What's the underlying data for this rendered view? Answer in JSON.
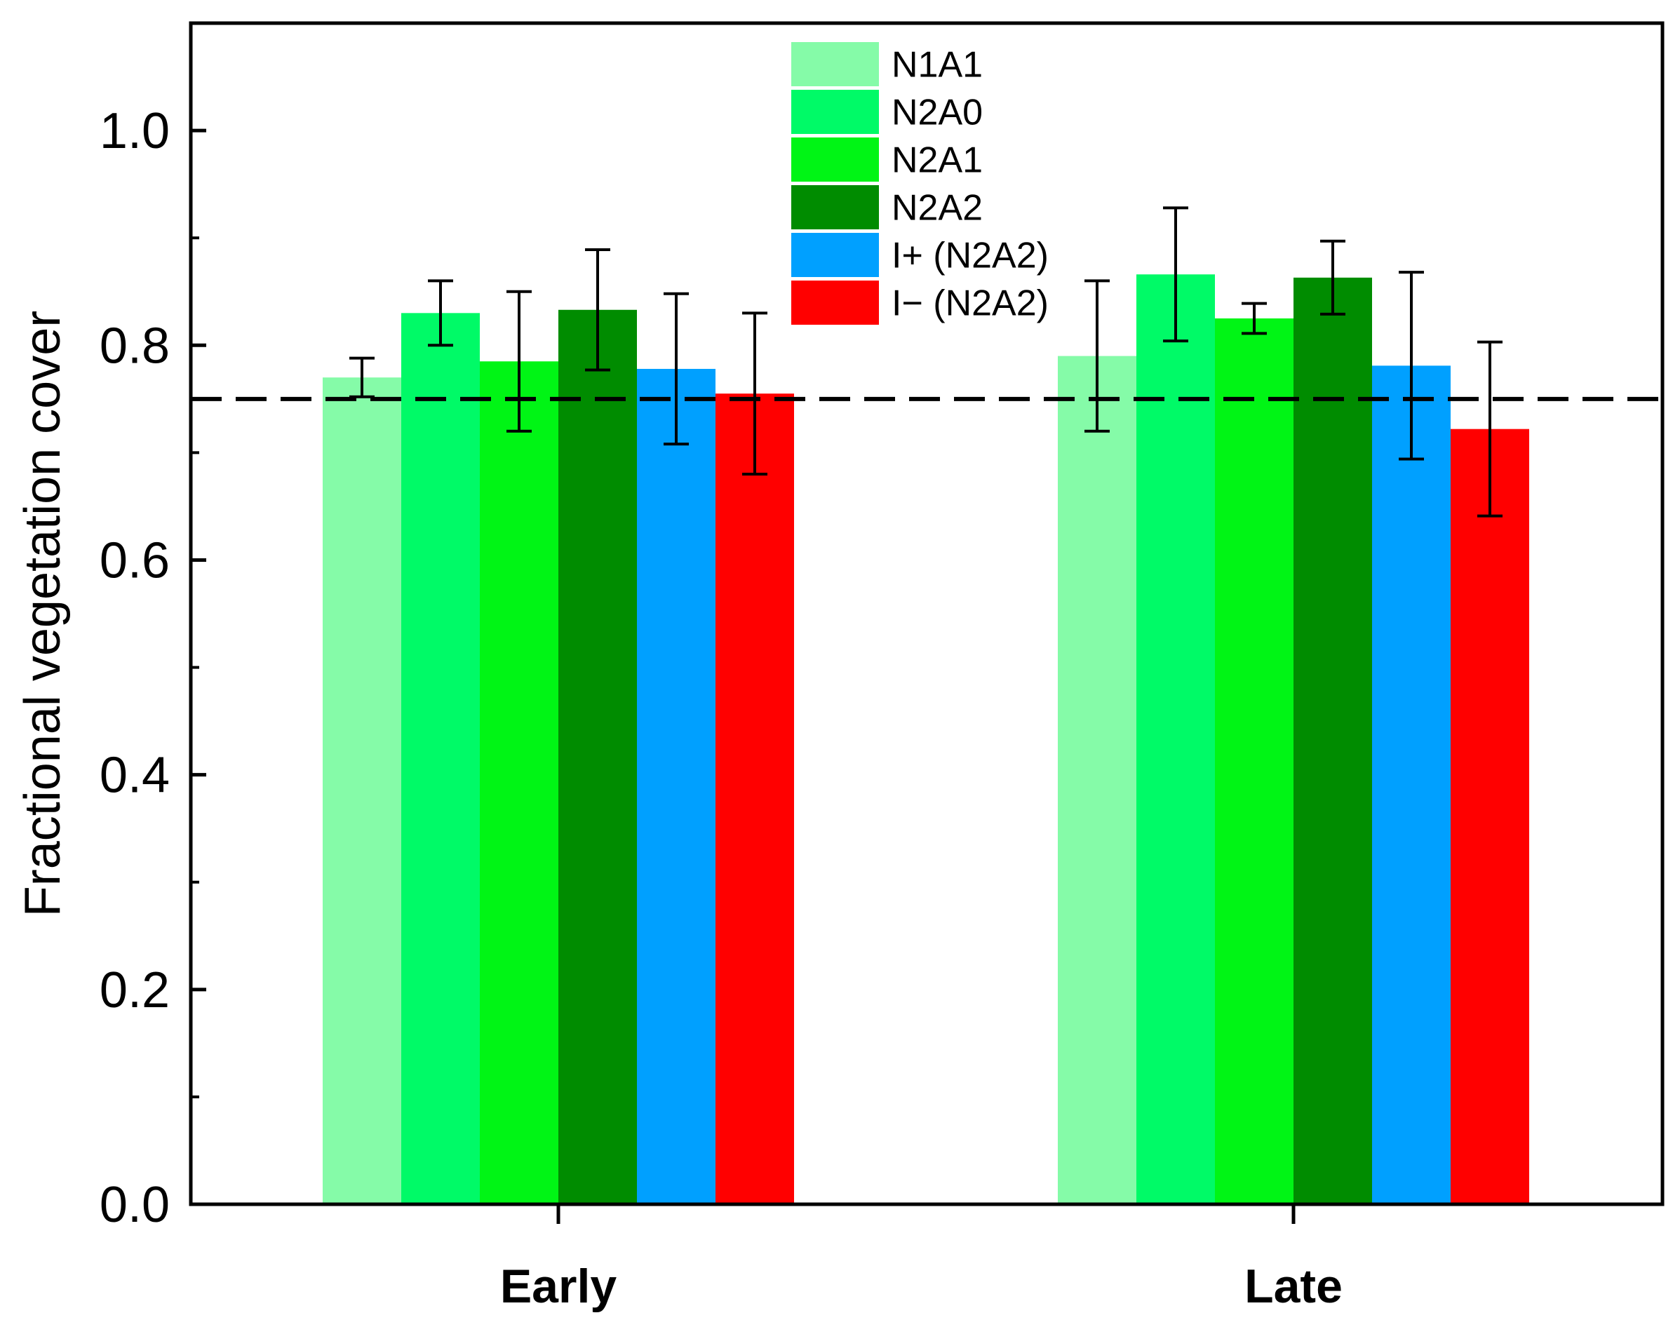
{
  "chart_data": {
    "type": "bar",
    "title": "",
    "xlabel": "",
    "ylabel": "Fractional vegetation cover",
    "ylim": [
      0,
      1.1
    ],
    "yticks": [
      "0.0",
      "0.2",
      "0.4",
      "0.6",
      "0.8",
      "1.0"
    ],
    "yticks_values": [
      0,
      0.2,
      0.4,
      0.6,
      0.8,
      1.0
    ],
    "categories": [
      "Early",
      "Late"
    ],
    "reference_line": {
      "value": 0.75,
      "style": "dashed"
    },
    "legend_position": "top-center",
    "series": [
      {
        "name": "N1A1",
        "color": "#85FBA8",
        "values": [
          0.77,
          0.79
        ],
        "errors": [
          0.018,
          0.07
        ]
      },
      {
        "name": "N2A0",
        "color": "#00FA67",
        "values": [
          0.83,
          0.866
        ],
        "errors": [
          0.03,
          0.062
        ]
      },
      {
        "name": "N2A1",
        "color": "#00F515",
        "values": [
          0.785,
          0.825
        ],
        "errors": [
          0.065,
          0.014
        ]
      },
      {
        "name": "N2A2",
        "color": "#008C00",
        "values": [
          0.833,
          0.863
        ],
        "errors": [
          0.056,
          0.034
        ]
      },
      {
        "name": "I+ (N2A2)",
        "color": "#00A0FF",
        "values": [
          0.778,
          0.781
        ],
        "errors": [
          0.07,
          0.087
        ]
      },
      {
        "name": "I− (N2A2)",
        "color": "#FF0000",
        "values": [
          0.755,
          0.722
        ],
        "errors": [
          0.075,
          0.081
        ]
      }
    ]
  }
}
